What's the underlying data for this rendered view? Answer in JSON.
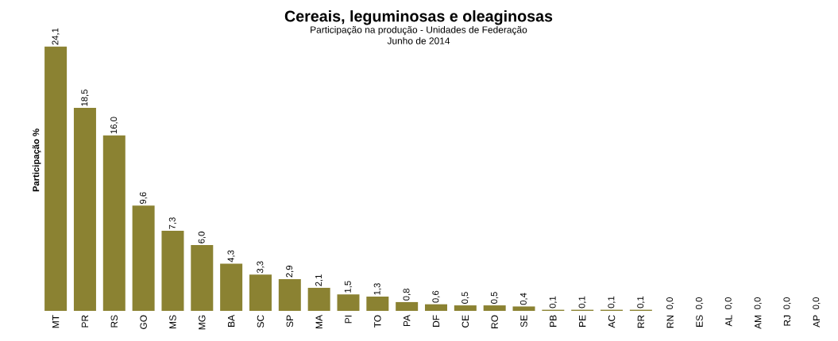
{
  "chart_data": {
    "type": "bar",
    "title": "Cereais, leguminosas e oleaginosas",
    "subtitle": "Participação na produção - Unidades de Federação",
    "annotations": [
      "Junho de 2014"
    ],
    "ylabel": "Participação %",
    "tick_labels": "x",
    "categories": [
      "MT",
      "PR",
      "RS",
      "GO",
      "MS",
      "MG",
      "BA",
      "SC",
      "SP",
      "MA",
      "PI",
      "TO",
      "PA",
      "DF",
      "CE",
      "RO",
      "SE",
      "PB",
      "PE",
      "AC",
      "RR",
      "RN",
      "ES",
      "AL",
      "AM",
      "RJ",
      "AP"
    ],
    "values": [
      24.1,
      18.5,
      16.0,
      9.6,
      7.3,
      6.0,
      4.3,
      3.3,
      2.9,
      2.1,
      1.5,
      1.3,
      0.8,
      0.6,
      0.5,
      0.5,
      0.4,
      0.1,
      0.1,
      0.1,
      0.1,
      0.0,
      0.0,
      0.0,
      0.0,
      0.0,
      0.0
    ],
    "value_labels": [
      "24,1",
      "18,5",
      "16,0",
      "9,6",
      "7,3",
      "6,0",
      "4,3",
      "3,3",
      "2,9",
      "2,1",
      "1,5",
      "1,3",
      "0,8",
      "0,6",
      "0,5",
      "0,5",
      "0,4",
      "0,1",
      "0,1",
      "0,1",
      "0,1",
      "0,0",
      "0,0",
      "0,0",
      "0,0",
      "0,0",
      "0,0"
    ],
    "color": "#8b8232"
  }
}
